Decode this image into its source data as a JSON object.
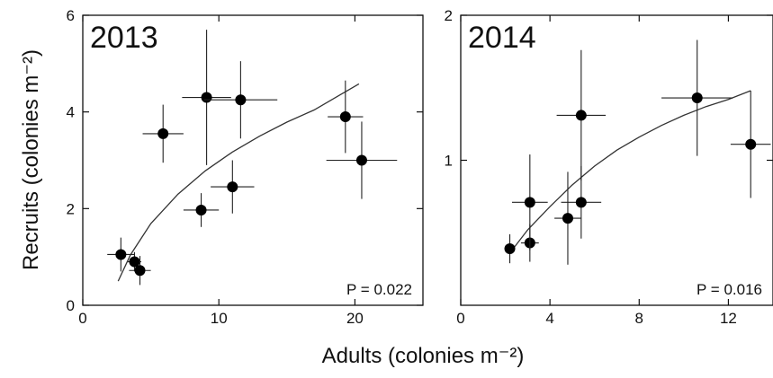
{
  "figure": {
    "y_axis_title": "Recruits (colonies m⁻²)",
    "x_axis_title": "Adults (colonies m⁻²)"
  },
  "chart_data": [
    {
      "type": "scatter",
      "panel_label": "2013",
      "annotation": "P = 0.022",
      "xlim": [
        0,
        25
      ],
      "ylim": [
        0,
        6
      ],
      "x_ticks": [
        0,
        10,
        20
      ],
      "y_ticks": [
        0,
        2,
        4,
        6
      ],
      "x_tick_labels": [
        "0",
        "10",
        "20"
      ],
      "y_tick_labels": [
        "0",
        "2",
        "4",
        "6"
      ],
      "points": [
        {
          "x": 2.8,
          "y": 1.05,
          "xerr": 1.0,
          "yerr": 0.35
        },
        {
          "x": 3.8,
          "y": 0.9,
          "xerr": 0.5,
          "yerr": 0.2
        },
        {
          "x": 4.2,
          "y": 0.72,
          "xerr": 0.8,
          "yerr": 0.3
        },
        {
          "x": 5.9,
          "y": 3.55,
          "xerr": 1.5,
          "yerr": 0.6
        },
        {
          "x": 8.7,
          "y": 1.97,
          "xerr": 1.3,
          "yerr": 0.35
        },
        {
          "x": 9.1,
          "y": 4.3,
          "xerr": 1.8,
          "yerr": 1.4
        },
        {
          "x": 11.0,
          "y": 2.45,
          "xerr": 1.6,
          "yerr": 0.55
        },
        {
          "x": 11.6,
          "y": 4.25,
          "xerr": 2.7,
          "yerr": 0.8
        },
        {
          "x": 19.3,
          "y": 3.9,
          "xerr": 1.3,
          "yerr": 0.75
        },
        {
          "x": 20.5,
          "y": 3.0,
          "xerr": 2.6,
          "yerr": 0.8
        }
      ],
      "fit_curve": {
        "x": [
          2.6,
          3.5,
          5,
          7,
          9,
          11,
          13,
          15,
          17,
          20.3
        ],
        "y": [
          0.5,
          1.04,
          1.69,
          2.3,
          2.78,
          3.17,
          3.5,
          3.79,
          4.04,
          4.58
        ]
      },
      "grid": false
    },
    {
      "type": "scatter",
      "panel_label": "2014",
      "annotation": "P = 0.016",
      "xlim": [
        0,
        14
      ],
      "ylim": [
        0,
        2
      ],
      "x_ticks": [
        0,
        4,
        8,
        12
      ],
      "y_ticks": [
        1,
        2
      ],
      "x_tick_labels": [
        "0",
        "4",
        "8",
        "12"
      ],
      "y_tick_labels": [
        "1",
        "2"
      ],
      "points": [
        {
          "x": 2.2,
          "y": 0.39,
          "xerr": 0.2,
          "yerr": 0.1
        },
        {
          "x": 3.1,
          "y": 0.43,
          "xerr": 0.4,
          "yerr": 0.13
        },
        {
          "x": 3.1,
          "y": 0.71,
          "xerr": 0.8,
          "yerr": 0.33
        },
        {
          "x": 4.8,
          "y": 0.6,
          "xerr": 0.6,
          "yerr": 0.32
        },
        {
          "x": 5.4,
          "y": 0.71,
          "xerr": 0.9,
          "yerr": 0.25
        },
        {
          "x": 5.4,
          "y": 1.31,
          "xerr": 1.1,
          "yerr": 0.45
        },
        {
          "x": 10.6,
          "y": 1.43,
          "xerr": 1.6,
          "yerr": 0.4
        },
        {
          "x": 13.0,
          "y": 1.11,
          "xerr": 0.9,
          "yerr": 0.37
        }
      ],
      "fit_curve": {
        "x": [
          2.2,
          3,
          4,
          5,
          6,
          7,
          8,
          9,
          10,
          11,
          12,
          13
        ],
        "y": [
          0.36,
          0.52,
          0.68,
          0.83,
          0.96,
          1.07,
          1.16,
          1.24,
          1.31,
          1.37,
          1.42,
          1.48
        ]
      },
      "grid": false
    }
  ]
}
